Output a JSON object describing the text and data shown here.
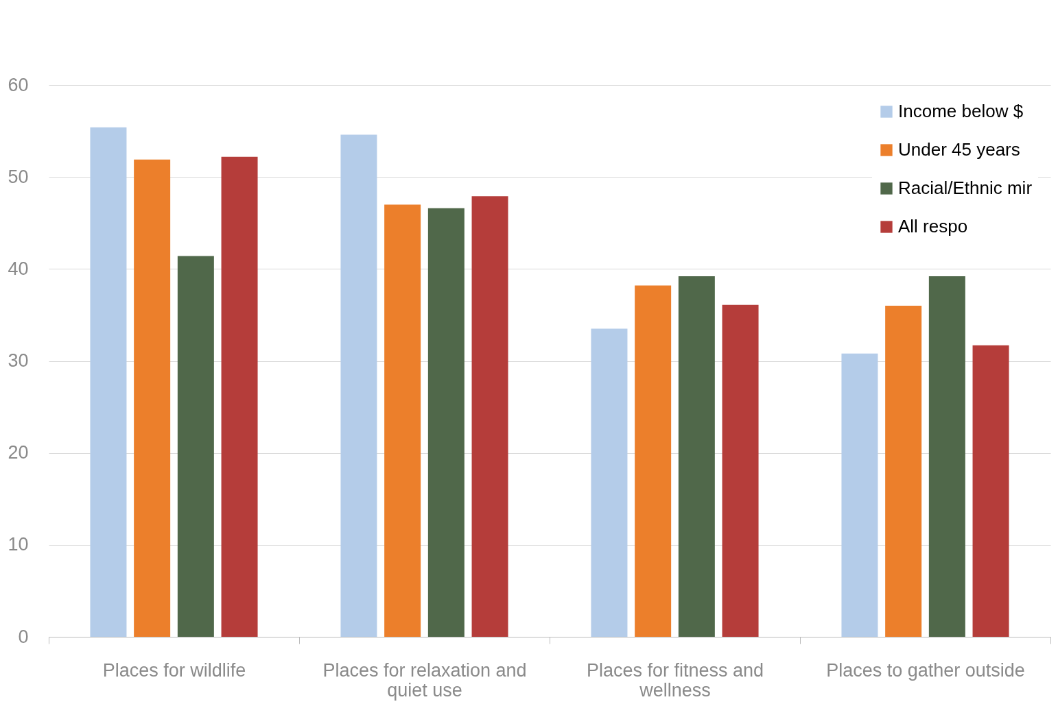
{
  "chart_data": {
    "type": "bar",
    "categories": [
      "Places for wildlife",
      "Places for relaxation and quiet use",
      "Places for fitness and wellness",
      "Places to gather outside"
    ],
    "series": [
      {
        "name": "Income below $",
        "color": "#b4cce9",
        "values": [
          55.4,
          54.6,
          33.5,
          30.8
        ]
      },
      {
        "name": "Under 45 years",
        "color": "#ec7f2b",
        "values": [
          51.9,
          47.0,
          38.2,
          36.0
        ]
      },
      {
        "name": "Racial/Ethnic mir",
        "color": "#50684a",
        "values": [
          41.4,
          46.6,
          39.2,
          39.2
        ]
      },
      {
        "name": "All respo",
        "color": "#b53d3a",
        "values": [
          52.2,
          47.9,
          36.1,
          31.7
        ]
      }
    ],
    "ylim": [
      0,
      60
    ],
    "yticks": [
      0,
      10,
      20,
      30,
      40,
      50,
      60
    ],
    "grid": "y",
    "legend": "top right"
  }
}
